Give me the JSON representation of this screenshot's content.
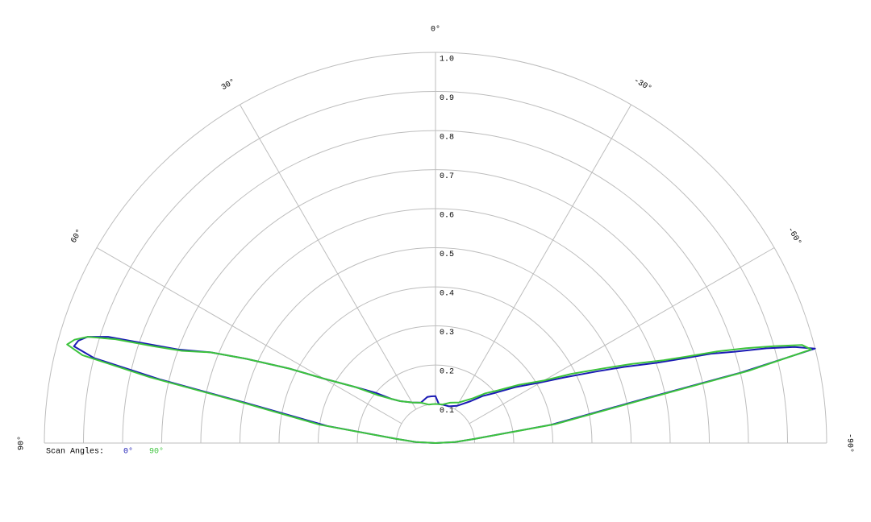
{
  "chart_data": {
    "type": "polar",
    "x": [
      90,
      87,
      84,
      81,
      78,
      77,
      76,
      75,
      74,
      73,
      72,
      71,
      70,
      68,
      66,
      63,
      60,
      55,
      50,
      45,
      40,
      30,
      20,
      10,
      5,
      0,
      -5,
      -10,
      -20,
      -30,
      -40,
      -45,
      -50,
      -55,
      -60,
      -63,
      -66,
      -68,
      -70,
      -71,
      -72,
      -73,
      -74,
      -75,
      -76,
      -77,
      -78,
      -81,
      -84,
      -87,
      -90
    ],
    "series": [
      {
        "name": "0°",
        "color": "#1a1ab4",
        "values": [
          0,
          0.05,
          0.1,
          0.28,
          0.5,
          0.72,
          0.9,
          0.957,
          0.95,
          0.93,
          0.88,
          0.78,
          0.7,
          0.62,
          0.53,
          0.42,
          0.33,
          0.25,
          0.2,
          0.16,
          0.14,
          0.12,
          0.11,
          0.12,
          0.12,
          0.12,
          0.1,
          0.1,
          0.1,
          0.11,
          0.14,
          0.17,
          0.2,
          0.25,
          0.31,
          0.37,
          0.45,
          0.52,
          0.6,
          0.66,
          0.74,
          0.8,
          0.88,
          0.95,
          1.0,
          0.8,
          0.55,
          0.3,
          0.1,
          0.05,
          0
        ]
      },
      {
        "name": "90°",
        "color": "#3cc33c",
        "values": [
          0,
          0.05,
          0.1,
          0.3,
          0.52,
          0.75,
          0.93,
          0.975,
          0.96,
          0.93,
          0.86,
          0.76,
          0.69,
          0.62,
          0.53,
          0.42,
          0.33,
          0.25,
          0.19,
          0.16,
          0.14,
          0.12,
          0.11,
          0.1,
          0.1,
          0.1,
          0.1,
          0.1,
          0.11,
          0.12,
          0.15,
          0.18,
          0.21,
          0.26,
          0.32,
          0.39,
          0.47,
          0.54,
          0.62,
          0.68,
          0.76,
          0.83,
          0.9,
          0.97,
          0.99,
          0.82,
          0.57,
          0.31,
          0.1,
          0.05,
          0
        ]
      }
    ],
    "legend_title": "Scan Angles:",
    "xlim": [
      90,
      -90
    ],
    "xticks": [
      {
        "value": 90,
        "label": "90°"
      },
      {
        "value": 60,
        "label": "60°"
      },
      {
        "value": 30,
        "label": "30°"
      },
      {
        "value": 0,
        "label": "0°"
      },
      {
        "value": -30,
        "label": "-30°"
      },
      {
        "value": -60,
        "label": "-60°"
      },
      {
        "value": -90,
        "label": "-90°"
      }
    ],
    "ylim": [
      0,
      1
    ],
    "yticks": [
      0.1,
      0.2,
      0.3,
      0.4,
      0.5,
      0.6,
      0.7,
      0.8,
      0.9,
      {
        "value": 1,
        "label": "1.0"
      }
    ],
    "grid": true
  }
}
